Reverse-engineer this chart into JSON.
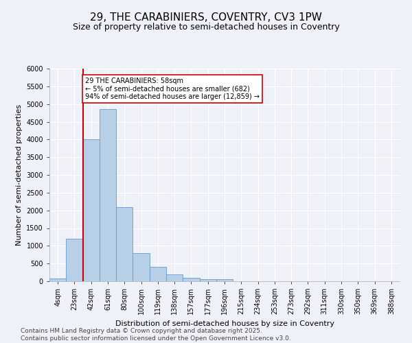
{
  "title_line1": "29, THE CARABINIERS, COVENTRY, CV3 1PW",
  "title_line2": "Size of property relative to semi-detached houses in Coventry",
  "xlabel": "Distribution of semi-detached houses by size in Coventry",
  "ylabel": "Number of semi-detached properties",
  "categories": [
    "4sqm",
    "23sqm",
    "42sqm",
    "61sqm",
    "80sqm",
    "100sqm",
    "119sqm",
    "138sqm",
    "157sqm",
    "177sqm",
    "196sqm",
    "215sqm",
    "234sqm",
    "253sqm",
    "273sqm",
    "292sqm",
    "311sqm",
    "330sqm",
    "350sqm",
    "369sqm",
    "388sqm"
  ],
  "values": [
    70,
    1200,
    4000,
    4850,
    2100,
    800,
    400,
    200,
    100,
    60,
    50,
    0,
    0,
    0,
    0,
    0,
    0,
    0,
    0,
    0,
    0
  ],
  "bar_color": "#b8cfe8",
  "bar_edge_color": "#6699cc",
  "vline_color": "#cc0000",
  "vline_x_index": 2,
  "annotation_text": "29 THE CARABINIERS: 58sqm\n← 5% of semi-detached houses are smaller (682)\n94% of semi-detached houses are larger (12,859) →",
  "annotation_box_facecolor": "#ffffff",
  "annotation_box_edgecolor": "#cc0000",
  "ylim": [
    0,
    6000
  ],
  "yticks": [
    0,
    500,
    1000,
    1500,
    2000,
    2500,
    3000,
    3500,
    4000,
    4500,
    5000,
    5500,
    6000
  ],
  "background_color": "#eef2f8",
  "grid_color": "#ffffff",
  "title_fontsize": 11,
  "subtitle_fontsize": 9,
  "axis_label_fontsize": 8,
  "tick_fontsize": 7,
  "annotation_fontsize": 7,
  "footer_fontsize": 6.5,
  "footer_line1": "Contains HM Land Registry data © Crown copyright and database right 2025.",
  "footer_line2": "Contains public sector information licensed under the Open Government Licence v3.0."
}
